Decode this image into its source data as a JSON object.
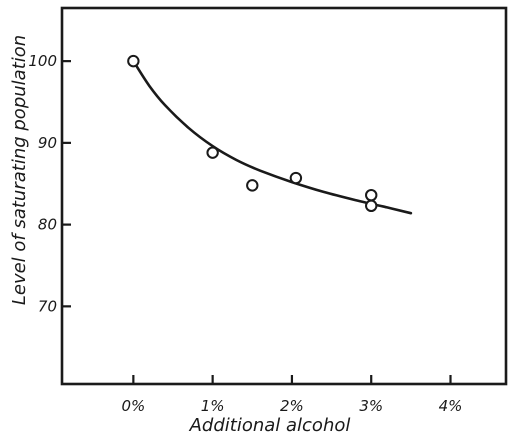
{
  "chart_data": {
    "type": "scatter",
    "title": "",
    "xlabel": "Additional alcohol",
    "ylabel": "Level of saturating population",
    "xlim": [
      -0.9,
      4.7
    ],
    "ylim": [
      60.5,
      106.5
    ],
    "x_ticks": [
      0,
      1,
      2,
      3,
      4
    ],
    "x_tick_labels": [
      "0%",
      "1%",
      "2%",
      "3%",
      "4%"
    ],
    "y_ticks": [
      70,
      80,
      90,
      100
    ],
    "y_tick_labels": [
      "70",
      "80",
      "90",
      "100"
    ],
    "grid": false,
    "legend": "none",
    "colors": {
      "ink": "#1a1a1a",
      "background": "#ffffff"
    },
    "series": [
      {
        "points": [
          {
            "x": 0.0,
            "y": 100.0
          },
          {
            "x": 1.0,
            "y": 88.8
          },
          {
            "x": 1.5,
            "y": 84.8
          },
          {
            "x": 2.05,
            "y": 85.7
          },
          {
            "x": 3.0,
            "y": 83.6
          },
          {
            "x": 3.0,
            "y": 82.3
          }
        ]
      }
    ],
    "fit_curve": {
      "x_range": [
        0.0,
        3.5
      ],
      "points": [
        {
          "x": 0.0,
          "y": 100.0
        },
        {
          "x": 0.2,
          "y": 97.0
        },
        {
          "x": 0.4,
          "y": 94.6
        },
        {
          "x": 0.7,
          "y": 91.8
        },
        {
          "x": 1.0,
          "y": 89.6
        },
        {
          "x": 1.3,
          "y": 87.9
        },
        {
          "x": 1.6,
          "y": 86.6
        },
        {
          "x": 2.0,
          "y": 85.2
        },
        {
          "x": 2.4,
          "y": 84.0
        },
        {
          "x": 2.8,
          "y": 83.0
        },
        {
          "x": 3.2,
          "y": 82.1
        },
        {
          "x": 3.5,
          "y": 81.4
        }
      ]
    }
  }
}
